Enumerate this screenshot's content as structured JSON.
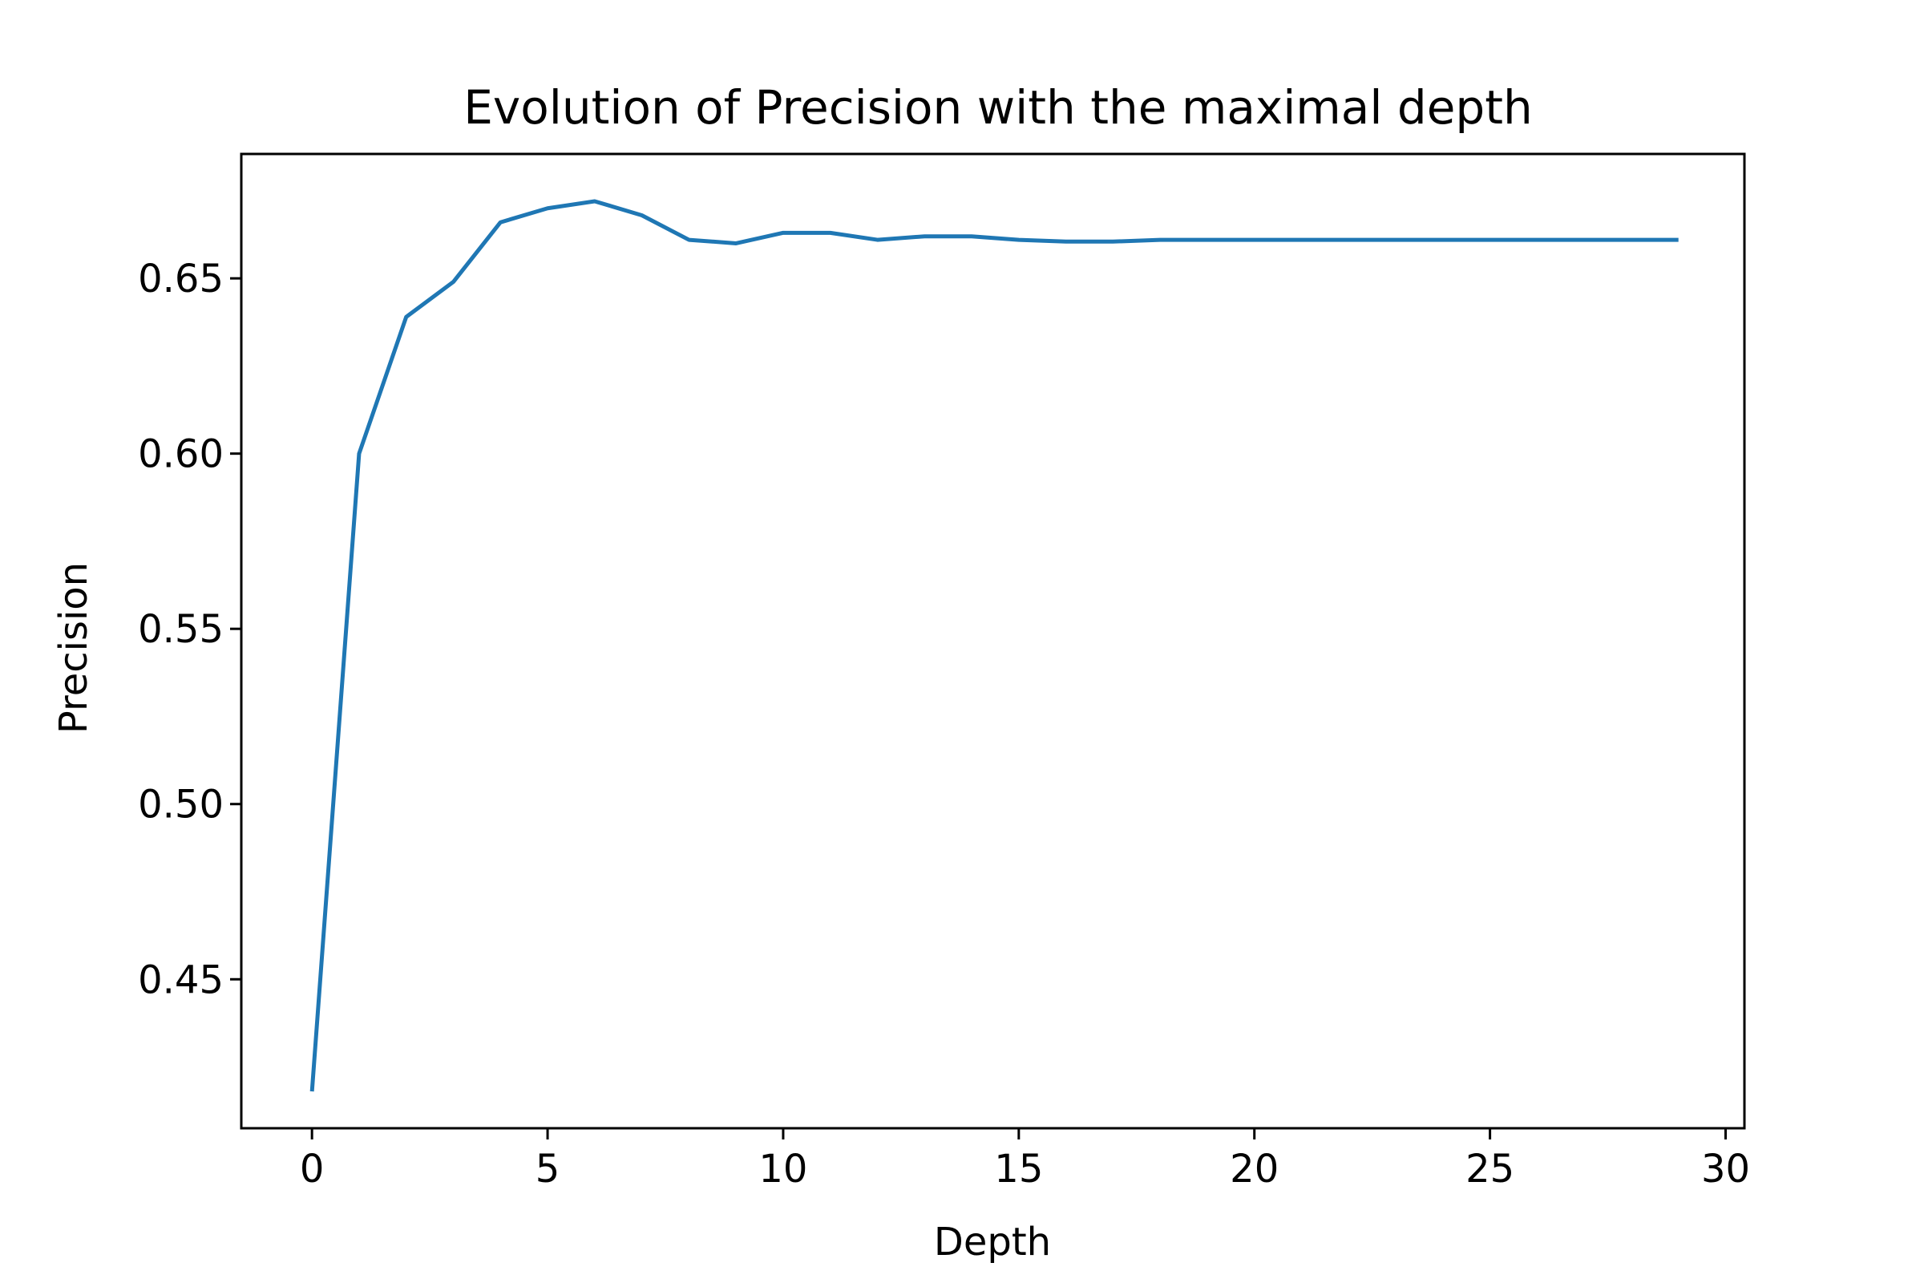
{
  "chart_data": {
    "type": "line",
    "title": "Evolution of Precision with the maximal depth",
    "xlabel": "Depth",
    "ylabel": "Precision",
    "xlim": [
      -1.5,
      30.4
    ],
    "ylim": [
      0.4075,
      0.6855
    ],
    "xticks": [
      0,
      5,
      10,
      15,
      20,
      25,
      30
    ],
    "xtick_labels": [
      "0",
      "5",
      "10",
      "15",
      "20",
      "25",
      "30"
    ],
    "yticks": [
      0.45,
      0.5,
      0.55,
      0.6,
      0.65
    ],
    "ytick_labels": [
      "0.45",
      "0.50",
      "0.55",
      "0.60",
      "0.65"
    ],
    "grid": false,
    "legend": "none",
    "series": [
      {
        "color": "#1f77b4",
        "x": [
          0,
          1,
          2,
          3,
          4,
          5,
          6,
          7,
          8,
          9,
          10,
          11,
          12,
          13,
          14,
          15,
          16,
          17,
          18,
          19,
          20,
          21,
          22,
          23,
          24,
          25,
          26,
          27,
          28,
          29
        ],
        "y": [
          0.418,
          0.6,
          0.639,
          0.649,
          0.666,
          0.67,
          0.672,
          0.668,
          0.661,
          0.66,
          0.663,
          0.663,
          0.661,
          0.662,
          0.662,
          0.661,
          0.6605,
          0.6605,
          0.661,
          0.661,
          0.661,
          0.661,
          0.661,
          0.661,
          0.661,
          0.661,
          0.661,
          0.661,
          0.661,
          0.661
        ]
      }
    ]
  }
}
